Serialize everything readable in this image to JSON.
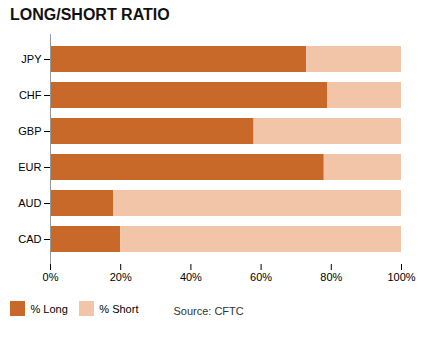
{
  "chart_data": {
    "type": "bar",
    "orientation": "horizontal",
    "stacked": true,
    "title": "LONG/SHORT RATIO",
    "categories": [
      "CAD",
      "AUD",
      "EUR",
      "GBP",
      "CHF",
      "JPY"
    ],
    "series": [
      {
        "name": "% Long",
        "color": "#C8692A",
        "values": [
          20,
          18,
          78,
          58,
          79,
          73
        ]
      },
      {
        "name": "% Short",
        "color": "#F2C4A8",
        "values": [
          80,
          82,
          22,
          42,
          21,
          27
        ]
      }
    ],
    "xlim": [
      0,
      100
    ],
    "xticks": [
      {
        "value": 0,
        "label": "0%"
      },
      {
        "value": 20,
        "label": "20%"
      },
      {
        "value": 40,
        "label": "40%"
      },
      {
        "value": 60,
        "label": "60%"
      },
      {
        "value": 80,
        "label": "80%"
      },
      {
        "value": 100,
        "label": "100%"
      }
    ],
    "grid": false,
    "legend": "lower left",
    "annotations": [
      "Source: CFTC"
    ]
  }
}
